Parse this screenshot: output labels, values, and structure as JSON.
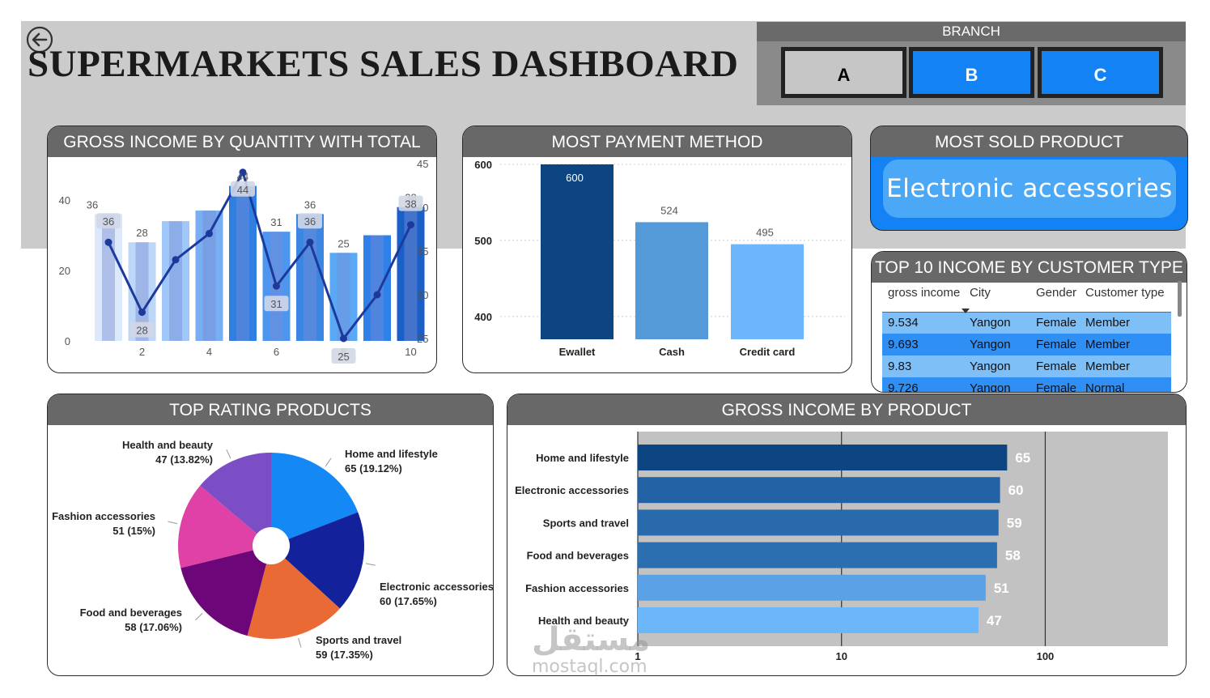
{
  "header": {
    "title": "SUPERMARKETS SALES DASHBOARD",
    "back_icon": "back-arrow-icon"
  },
  "branch": {
    "label": "BRANCH",
    "options": [
      "A",
      "B",
      "C"
    ],
    "selected_color": "#1382f5",
    "unselected_color": "#c6c6c6"
  },
  "cards": {
    "gross_by_qty": "GROSS INCOME BY QUANTITY WITH TOTAL",
    "payment": "MOST PAYMENT METHOD",
    "most_sold": "MOST SOLD PRODUCT",
    "top10": "TOP 10 INCOME BY CUSTOMER TYPE",
    "top_rating": "TOP RATING PRODUCTS",
    "gross_by_product": "GROSS INCOME BY PRODUCT"
  },
  "most_sold_product": "Electronic accessories",
  "customer_table": {
    "columns": [
      "gross income",
      "City",
      "Gender",
      "Customer type"
    ],
    "rows": [
      [
        "9.534",
        "Yangon",
        "Female",
        "Member"
      ],
      [
        "9.693",
        "Yangon",
        "Female",
        "Member"
      ],
      [
        "9.83",
        "Yangon",
        "Female",
        "Member"
      ],
      [
        "9.726",
        "Yangon",
        "Female",
        "Normal"
      ]
    ]
  },
  "watermark": {
    "arabic": "مستقل",
    "latin": "mostaql.com"
  },
  "chart_data": [
    {
      "id": "gross_income_by_quantity",
      "type": "bar+line",
      "categories": [
        1,
        2,
        3,
        4,
        5,
        6,
        7,
        8,
        9,
        10
      ],
      "x_ticks": [
        2,
        4,
        6,
        8,
        10
      ],
      "y_left_ticks": [
        0,
        20,
        40
      ],
      "y_left_lim": [
        0,
        40
      ],
      "y_right_ticks": [
        25,
        30,
        35,
        40,
        45
      ],
      "y_right_lim": [
        25,
        45
      ],
      "series": [
        {
          "type": "bar",
          "axis": "left",
          "values": [
            36,
            28,
            34,
            37,
            44,
            31,
            36,
            25,
            30,
            38
          ],
          "colors": [
            "#dbe9fb",
            "#bcd7f8",
            "#9fc8f9",
            "#78aef3",
            "#2f7fe3",
            "#4d96f0",
            "#3b86e3",
            "#59a9f6",
            "#2f80e8",
            "#1a5fc7"
          ]
        },
        {
          "type": "line",
          "axis": "right",
          "values": [
            36,
            28,
            34,
            37,
            44,
            31,
            36,
            25,
            30,
            38
          ],
          "color": "#1c3a9c"
        }
      ],
      "bar_labels": [
        "36",
        "28",
        "",
        "",
        "44",
        "31",
        "36",
        "25",
        "",
        "38"
      ],
      "line_labels": [
        "36",
        "28",
        "",
        "",
        "44",
        "31",
        "36",
        "25",
        "",
        "38"
      ]
    },
    {
      "id": "most_payment_method",
      "type": "bar",
      "categories": [
        "Ewallet",
        "Cash",
        "Credit card"
      ],
      "values": [
        600,
        524,
        495
      ],
      "ylim": [
        370,
        600
      ],
      "y_ticks": [
        400,
        500,
        600
      ],
      "colors": [
        "#0d4582",
        "#5499d8",
        "#6eb6fb"
      ]
    },
    {
      "id": "top_rating_products",
      "type": "pie",
      "labels": [
        "Home and lifestyle",
        "Electronic accessories",
        "Sports and travel",
        "Food and beverages",
        "Fashion accessories",
        "Health and beauty"
      ],
      "values": [
        65,
        60,
        59,
        58,
        51,
        47
      ],
      "percent_labels": [
        "65 (19.12%)",
        "60 (17.65%)",
        "59 (17.35%)",
        "58 (17.06%)",
        "51 (15%)",
        "47 (13.82%)"
      ],
      "colors": [
        "#1488f5",
        "#13229a",
        "#ea6a35",
        "#6d0779",
        "#e041a7",
        "#7b4ec5"
      ]
    },
    {
      "id": "gross_income_by_product",
      "type": "bar",
      "orientation": "horizontal",
      "log_scale": true,
      "categories": [
        "Home and lifestyle",
        "Electronic accessories",
        "Sports and travel",
        "Food and beverages",
        "Fashion accessories",
        "Health and beauty"
      ],
      "values": [
        65,
        60,
        59,
        58,
        51,
        47
      ],
      "x_ticks": [
        1,
        10,
        100
      ],
      "xlim": [
        1,
        400
      ],
      "colors": [
        "#0d4582",
        "#2262a5",
        "#286aab",
        "#2c6fb1",
        "#5aa2e5",
        "#6cb6fa"
      ],
      "background": "#c2c2c2"
    }
  ]
}
